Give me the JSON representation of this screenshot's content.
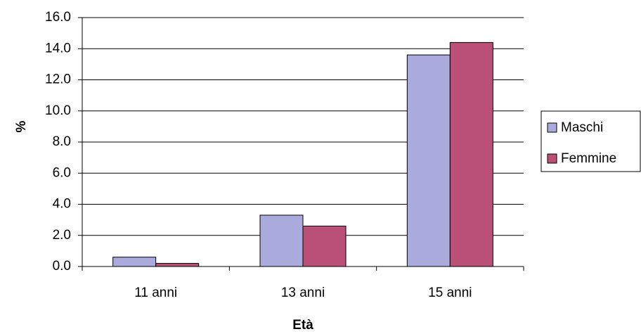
{
  "chart_data": {
    "type": "bar",
    "x_label": "Età",
    "y_label": "%",
    "categories": [
      "11 anni",
      "13 anni",
      "15 anni"
    ],
    "series": [
      {
        "name": "Maschi",
        "color": "#aaaadd",
        "values": [
          0.6,
          3.3,
          13.6
        ]
      },
      {
        "name": "Femmine",
        "color": "#bb5077",
        "values": [
          0.2,
          2.6,
          14.4
        ]
      }
    ],
    "ylim": [
      0,
      16
    ],
    "yticks": [
      {
        "value": 0,
        "label": "0.0"
      },
      {
        "value": 2,
        "label": "2.0"
      },
      {
        "value": 4,
        "label": "4.0"
      },
      {
        "value": 6,
        "label": "6.0"
      },
      {
        "value": 8,
        "label": "8.0"
      },
      {
        "value": 10,
        "label": "10.0"
      },
      {
        "value": 12,
        "label": "12.0"
      },
      {
        "value": 14,
        "label": "14.0"
      },
      {
        "value": 16,
        "label": "16.0"
      }
    ],
    "grid": true,
    "legend": "right"
  }
}
